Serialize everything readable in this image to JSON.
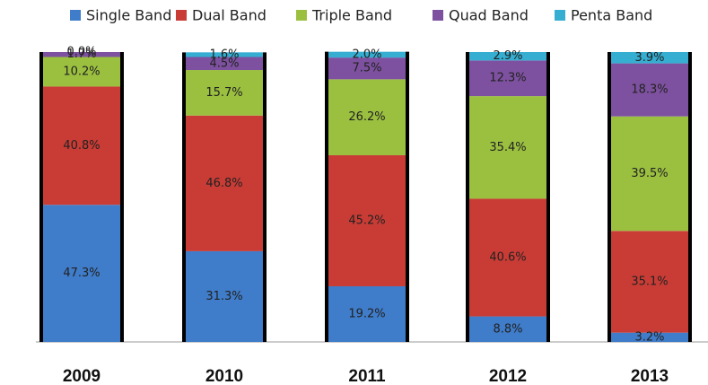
{
  "chart_data": {
    "type": "stacked_bar",
    "categories": [
      "2009",
      "2010",
      "2011",
      "2012",
      "2013"
    ],
    "ylim": [
      0,
      100
    ],
    "series": [
      {
        "name": "Single Band",
        "color": "#3f7cc9",
        "values": [
          47.3,
          31.3,
          19.2,
          8.8,
          3.2
        ],
        "value_labels": [
          "47.3%",
          "31.3%",
          "19.2%",
          "8.8%",
          "3.2%"
        ]
      },
      {
        "name": "Dual Band",
        "color": "#c93c35",
        "values": [
          40.8,
          46.8,
          45.2,
          40.6,
          35.1
        ],
        "value_labels": [
          "40.8%",
          "46.8%",
          "45.2%",
          "40.6%",
          "35.1%"
        ]
      },
      {
        "name": "Triple Band",
        "color": "#9bc040",
        "values": [
          10.2,
          15.7,
          26.2,
          35.4,
          39.5
        ],
        "value_labels": [
          "10.2%",
          "15.7%",
          "26.2%",
          "35.4%",
          "39.5%"
        ]
      },
      {
        "name": "Quad Band",
        "color": "#7d519f",
        "values": [
          1.7,
          4.5,
          7.5,
          12.3,
          18.3
        ],
        "value_labels": [
          "1.7%",
          "4.5%",
          "7.5%",
          "12.3%",
          "18.3%"
        ]
      },
      {
        "name": "Penta Band",
        "color": "#35aed2",
        "values": [
          0.0,
          1.6,
          2.0,
          2.9,
          3.9
        ],
        "value_labels": [
          "0.0%",
          "1.6%",
          "2.0%",
          "2.9%",
          "3.9%"
        ]
      }
    ]
  }
}
